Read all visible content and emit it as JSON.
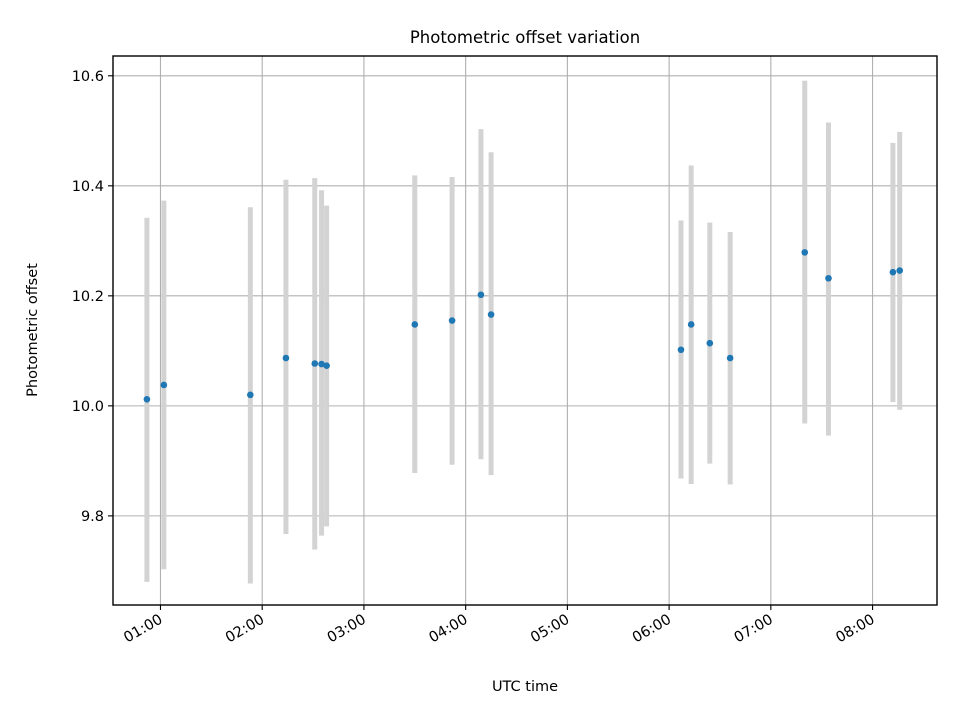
{
  "chart_data": {
    "type": "scatter",
    "title": "Photometric offset variation",
    "xlabel": "UTC time",
    "ylabel": "Photometric offset",
    "x_ticks": [
      "01:00",
      "02:00",
      "03:00",
      "04:00",
      "05:00",
      "06:00",
      "07:00",
      "08:00"
    ],
    "y_ticks": [
      "9.8",
      "10.0",
      "10.2",
      "10.4",
      "10.6"
    ],
    "xlim": [
      "00:32",
      "08:38"
    ],
    "ylim": [
      9.638,
      10.636
    ],
    "grid": true,
    "series": [
      {
        "x": [
          "00:52",
          "01:02",
          "01:53",
          "02:14",
          "02:31",
          "02:35",
          "02:38",
          "03:30",
          "03:52",
          "04:09",
          "04:15",
          "06:07",
          "06:13",
          "06:24",
          "06:36",
          "07:20",
          "07:34",
          "08:12",
          "08:16"
        ],
        "y": [
          10.012,
          10.038,
          10.02,
          10.087,
          10.077,
          10.076,
          10.073,
          10.148,
          10.155,
          10.202,
          10.166,
          10.102,
          10.148,
          10.114,
          10.087,
          10.279,
          10.232,
          10.243,
          10.246
        ],
        "yerr_low": [
          9.68,
          9.703,
          9.677,
          9.767,
          9.739,
          9.764,
          9.781,
          9.878,
          9.893,
          9.903,
          9.874,
          9.868,
          9.858,
          9.895,
          9.857,
          9.968,
          9.946,
          10.007,
          9.993
        ],
        "yerr_high": [
          10.342,
          10.373,
          10.361,
          10.411,
          10.414,
          10.392,
          10.364,
          10.419,
          10.416,
          10.503,
          10.461,
          10.337,
          10.437,
          10.333,
          10.316,
          10.591,
          10.515,
          10.478,
          10.498
        ],
        "marker_color": "#1f77b4",
        "errorbar_color": "#d3d3d3"
      }
    ]
  }
}
